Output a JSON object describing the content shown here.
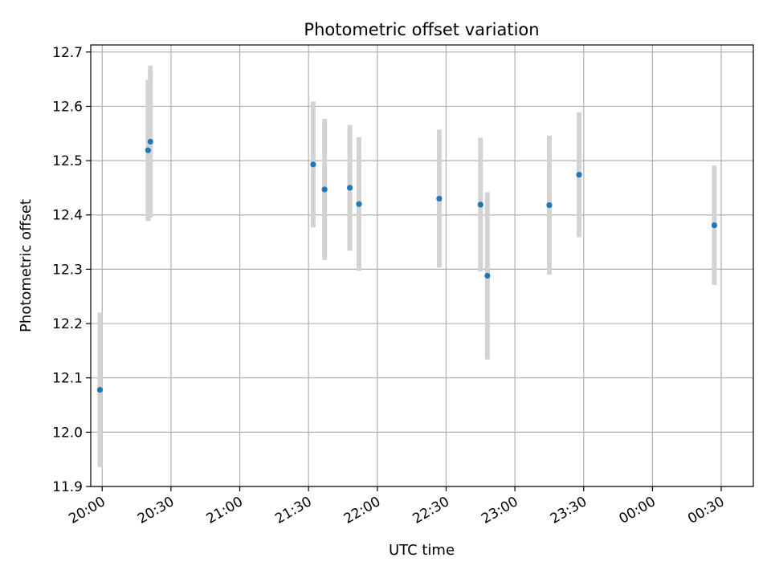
{
  "chart_data": {
    "type": "scatter",
    "title": "Photometric offset variation",
    "xlabel": "UTC time",
    "ylabel": "Photometric offset",
    "x_scale": "time",
    "xlim": [
      "19:55",
      "00:44"
    ],
    "ylim": [
      11.9,
      12.713
    ],
    "grid": true,
    "marker_color": "#1f77b4",
    "errorbar_color": "#d3d3d3",
    "x_ticks": [
      "20:00",
      "20:30",
      "21:00",
      "21:30",
      "22:00",
      "22:30",
      "23:00",
      "23:30",
      "00:00",
      "00:30"
    ],
    "y_ticks": [
      "11.9",
      "12.0",
      "12.1",
      "12.2",
      "12.3",
      "12.4",
      "12.5",
      "12.6",
      "12.7"
    ],
    "points": [
      {
        "x": "19:59",
        "y": 12.078,
        "yerr": 0.142
      },
      {
        "x": "20:20",
        "y": 12.519,
        "yerr": 0.13
      },
      {
        "x": "20:21",
        "y": 12.535,
        "yerr": 0.14
      },
      {
        "x": "21:32",
        "y": 12.493,
        "yerr": 0.116
      },
      {
        "x": "21:37",
        "y": 12.447,
        "yerr": 0.13
      },
      {
        "x": "21:48",
        "y": 12.45,
        "yerr": 0.116
      },
      {
        "x": "21:52",
        "y": 12.42,
        "yerr": 0.123
      },
      {
        "x": "22:27",
        "y": 12.43,
        "yerr": 0.127
      },
      {
        "x": "22:45",
        "y": 12.419,
        "yerr": 0.123
      },
      {
        "x": "22:48",
        "y": 12.288,
        "yerr": 0.154
      },
      {
        "x": "23:15",
        "y": 12.418,
        "yerr": 0.128
      },
      {
        "x": "23:28",
        "y": 12.474,
        "yerr": 0.115
      },
      {
        "x": "00:27",
        "y": 12.381,
        "yerr": 0.11
      }
    ]
  }
}
